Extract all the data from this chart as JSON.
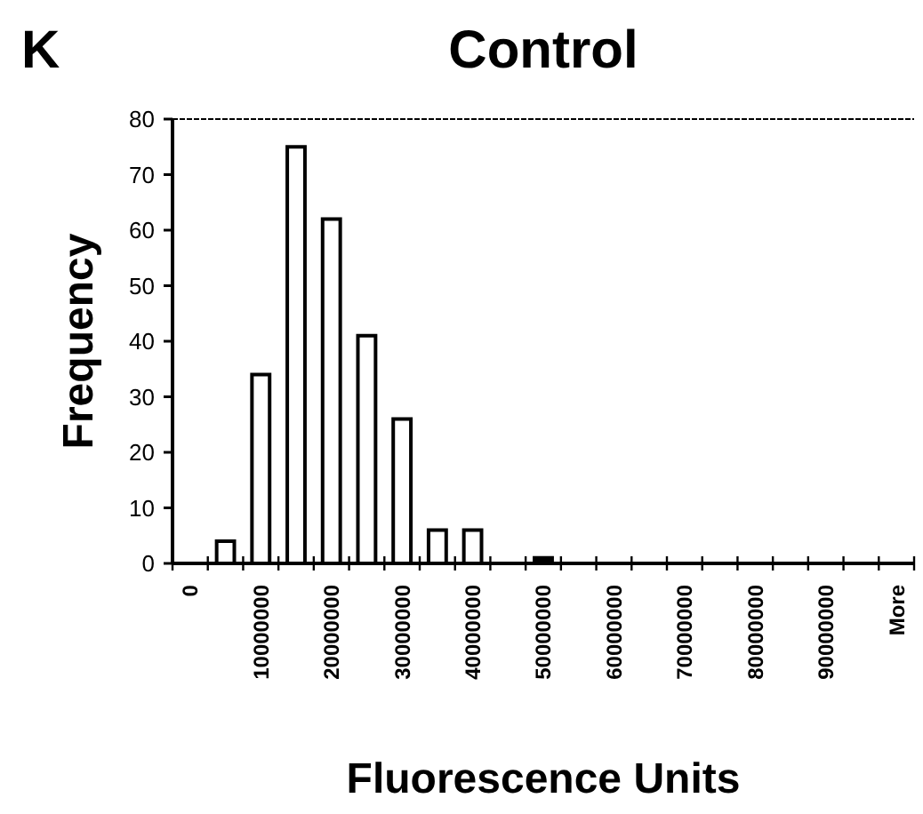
{
  "chart_data": {
    "type": "bar",
    "title": "Control",
    "annotations": [
      "K"
    ],
    "xlabel": "Fluorescence Units",
    "ylabel": "Frequency",
    "categories": [
      "0",
      null,
      "10000000",
      null,
      "20000000",
      null,
      "30000000",
      null,
      "40000000",
      null,
      "50000000",
      null,
      "60000000",
      null,
      "70000000",
      null,
      "80000000",
      null,
      "90000000",
      null,
      "More"
    ],
    "values": [
      0,
      4,
      34,
      75,
      62,
      41,
      26,
      6,
      6,
      0,
      1,
      0,
      0,
      0,
      0,
      0,
      0,
      0,
      0,
      0,
      0
    ],
    "colors": [
      "#ffffff",
      "#ffffff",
      "#ffffff",
      "#ffffff",
      "#ffffff",
      "#ffffff",
      "#ffffff",
      "#ffffff",
      "#ffffff",
      "#ffffff",
      "#000000",
      "#ffffff",
      "#ffffff",
      "#ffffff",
      "#ffffff",
      "#ffffff",
      "#ffffff",
      "#ffffff",
      "#ffffff",
      "#ffffff",
      "#ffffff"
    ],
    "ylim": [
      0,
      80
    ],
    "yticks": [
      0,
      10,
      20,
      30,
      40,
      50,
      60,
      70,
      80
    ],
    "grid": false
  }
}
